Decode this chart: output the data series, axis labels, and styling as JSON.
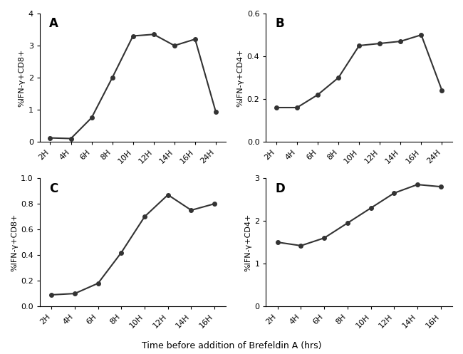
{
  "panel_A": {
    "x_labels": [
      "2H",
      "4H",
      "6H",
      "8H",
      "10H",
      "12H",
      "14H",
      "16H",
      "24H"
    ],
    "x_values": [
      0,
      1,
      2,
      3,
      4,
      5,
      6,
      7,
      8
    ],
    "y_values": [
      0.12,
      0.1,
      0.75,
      2.0,
      3.3,
      3.35,
      3.0,
      3.2,
      0.93
    ],
    "ylabel": "%IFN-γ+CD8+",
    "ylim": [
      0,
      4
    ],
    "yticks": [
      0,
      1,
      2,
      3,
      4
    ],
    "label": "A"
  },
  "panel_B": {
    "x_labels": [
      "2H",
      "4H",
      "6H",
      "8H",
      "10H",
      "12H",
      "14H",
      "16H",
      "24H"
    ],
    "x_values": [
      0,
      1,
      2,
      3,
      4,
      5,
      6,
      7,
      8
    ],
    "y_values": [
      0.16,
      0.16,
      0.22,
      0.3,
      0.45,
      0.46,
      0.47,
      0.5,
      0.24
    ],
    "ylabel": "%IFN-γ+CD4+",
    "ylim": [
      0,
      0.6
    ],
    "yticks": [
      0.0,
      0.2,
      0.4,
      0.6
    ],
    "label": "B"
  },
  "panel_C": {
    "x_labels": [
      "2H",
      "4H",
      "6H",
      "8H",
      "10H",
      "12H",
      "14H",
      "16H"
    ],
    "x_values": [
      0,
      1,
      2,
      3,
      4,
      5,
      6,
      7
    ],
    "y_values": [
      0.09,
      0.1,
      0.18,
      0.42,
      0.7,
      0.87,
      0.75,
      0.8
    ],
    "ylabel": "%IFN-γ+CD8+",
    "ylim": [
      0,
      1.0
    ],
    "yticks": [
      0.0,
      0.2,
      0.4,
      0.6,
      0.8,
      1.0
    ],
    "label": "C"
  },
  "panel_D": {
    "x_labels": [
      "2H",
      "4H",
      "6H",
      "8H",
      "10H",
      "12H",
      "14H",
      "16H"
    ],
    "x_values": [
      0,
      1,
      2,
      3,
      4,
      5,
      6,
      7
    ],
    "y_values": [
      1.5,
      1.42,
      1.6,
      1.95,
      2.3,
      2.65,
      2.85,
      2.8
    ],
    "ylabel": "%IFN-γ+CD4+",
    "ylim": [
      0,
      3
    ],
    "yticks": [
      0,
      1,
      2,
      3
    ],
    "label": "D"
  },
  "xlabel": "Time before addition of Brefeldin A (hrs)",
  "line_color": "#333333",
  "marker": "o",
  "markersize": 4,
  "linewidth": 1.5
}
